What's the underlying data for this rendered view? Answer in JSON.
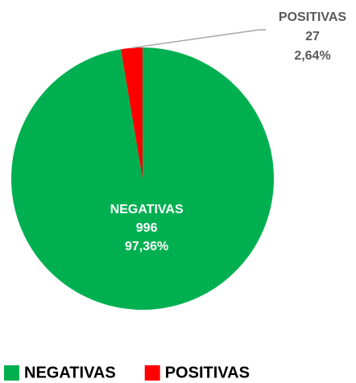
{
  "chart_data": {
    "type": "pie",
    "categories": [
      "NEGATIVAS",
      "POSITIVAS"
    ],
    "values": [
      996,
      27
    ],
    "percentages": [
      97.36,
      2.64
    ],
    "percentage_labels": [
      "97,36%",
      "2,64%"
    ],
    "colors": [
      "#00b050",
      "#ff0000"
    ],
    "legend": "bottom"
  }
}
